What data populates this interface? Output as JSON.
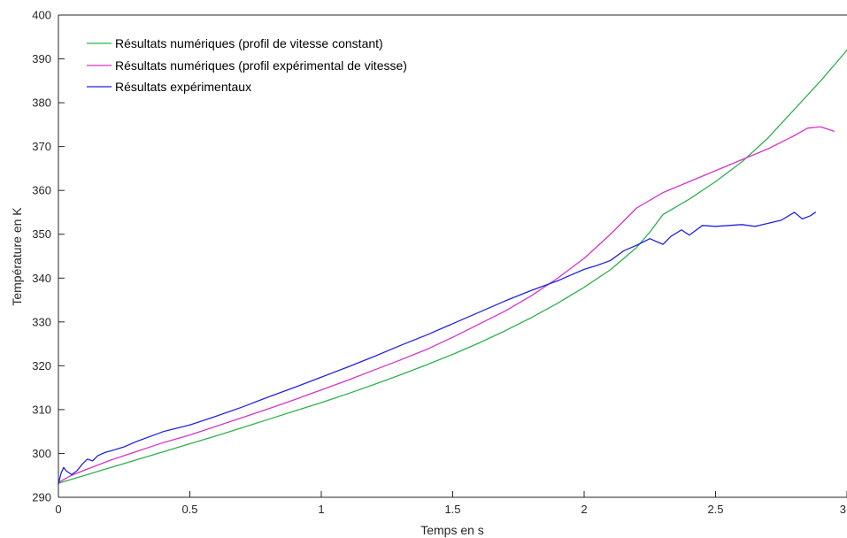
{
  "chart_data": {
    "type": "line",
    "title": "",
    "xlabel": "Temps en s",
    "ylabel": "Température en K",
    "xlim": [
      0,
      3
    ],
    "ylim": [
      290,
      400
    ],
    "xticks": [
      0,
      0.5,
      1,
      1.5,
      2,
      2.5,
      3
    ],
    "xtick_labels": [
      "0",
      "0.5",
      "1",
      "1.5",
      "2",
      "2.5",
      "3"
    ],
    "yticks": [
      290,
      300,
      310,
      320,
      330,
      340,
      350,
      360,
      370,
      380,
      390,
      400
    ],
    "ytick_labels": [
      "290",
      "300",
      "310",
      "320",
      "330",
      "340",
      "350",
      "360",
      "370",
      "380",
      "390",
      "400"
    ],
    "grid": false,
    "legend_position": "top-left",
    "series": [
      {
        "name": "Résultats numériques (profil de vitesse constant)",
        "color": "#2EB04F",
        "x": [
          0,
          0.1,
          0.2,
          0.3,
          0.4,
          0.5,
          0.6,
          0.7,
          0.8,
          0.9,
          1.0,
          1.1,
          1.2,
          1.3,
          1.4,
          1.5,
          1.6,
          1.7,
          1.8,
          1.9,
          2.0,
          2.1,
          2.2,
          2.25,
          2.3,
          2.4,
          2.5,
          2.6,
          2.7,
          2.8,
          2.9,
          3.0
        ],
        "y": [
          293.2,
          295.0,
          296.8,
          298.6,
          300.4,
          302.2,
          304.0,
          305.9,
          307.8,
          309.7,
          311.6,
          313.6,
          315.7,
          317.9,
          320.2,
          322.6,
          325.2,
          328.0,
          331.0,
          334.3,
          337.9,
          341.9,
          347.0,
          350.5,
          354.5,
          358.0,
          362.0,
          366.5,
          372.0,
          378.5,
          385.0,
          392.0
        ]
      },
      {
        "name": "Résultats numériques (profil expérimental de vitesse)",
        "color": "#D633C8",
        "x": [
          0,
          0.05,
          0.1,
          0.2,
          0.3,
          0.4,
          0.5,
          0.6,
          0.7,
          0.8,
          0.9,
          1.0,
          1.1,
          1.2,
          1.3,
          1.4,
          1.5,
          1.6,
          1.7,
          1.8,
          1.9,
          2.0,
          2.1,
          2.15,
          2.2,
          2.3,
          2.4,
          2.5,
          2.6,
          2.7,
          2.8,
          2.85,
          2.9,
          2.95
        ],
        "y": [
          293.4,
          295.0,
          296.2,
          298.5,
          300.5,
          302.5,
          304.2,
          306.2,
          308.2,
          310.2,
          312.3,
          314.5,
          316.7,
          319.0,
          321.3,
          323.7,
          326.5,
          329.5,
          332.5,
          336.0,
          340.0,
          344.5,
          350.0,
          353.0,
          356.0,
          359.5,
          362.0,
          364.5,
          367.0,
          369.5,
          372.5,
          374.2,
          374.5,
          373.5
        ]
      },
      {
        "name": "Résultats expérimentaux",
        "color": "#2323E0",
        "x": [
          0,
          0.01,
          0.02,
          0.03,
          0.05,
          0.07,
          0.09,
          0.11,
          0.13,
          0.15,
          0.18,
          0.2,
          0.25,
          0.3,
          0.4,
          0.5,
          0.6,
          0.7,
          0.8,
          0.9,
          1.0,
          1.1,
          1.2,
          1.3,
          1.4,
          1.5,
          1.6,
          1.7,
          1.8,
          1.9,
          2.0,
          2.05,
          2.1,
          2.15,
          2.2,
          2.25,
          2.28,
          2.3,
          2.33,
          2.37,
          2.4,
          2.45,
          2.5,
          2.55,
          2.6,
          2.65,
          2.7,
          2.75,
          2.8,
          2.83,
          2.86,
          2.88
        ],
        "y": [
          293.0,
          295.5,
          296.8,
          296.0,
          295.2,
          296.0,
          297.5,
          298.7,
          298.3,
          299.5,
          300.3,
          300.6,
          301.5,
          302.8,
          305.0,
          306.5,
          308.5,
          310.6,
          312.9,
          315.1,
          317.4,
          319.7,
          322.1,
          324.6,
          327.0,
          329.6,
          332.2,
          334.8,
          337.2,
          339.4,
          342.0,
          342.9,
          344.0,
          346.2,
          347.5,
          349.0,
          348.2,
          347.7,
          349.5,
          351.0,
          349.8,
          352.0,
          351.8,
          352.0,
          352.2,
          351.8,
          352.5,
          353.2,
          355.0,
          353.5,
          354.2,
          355.0
        ]
      }
    ]
  }
}
